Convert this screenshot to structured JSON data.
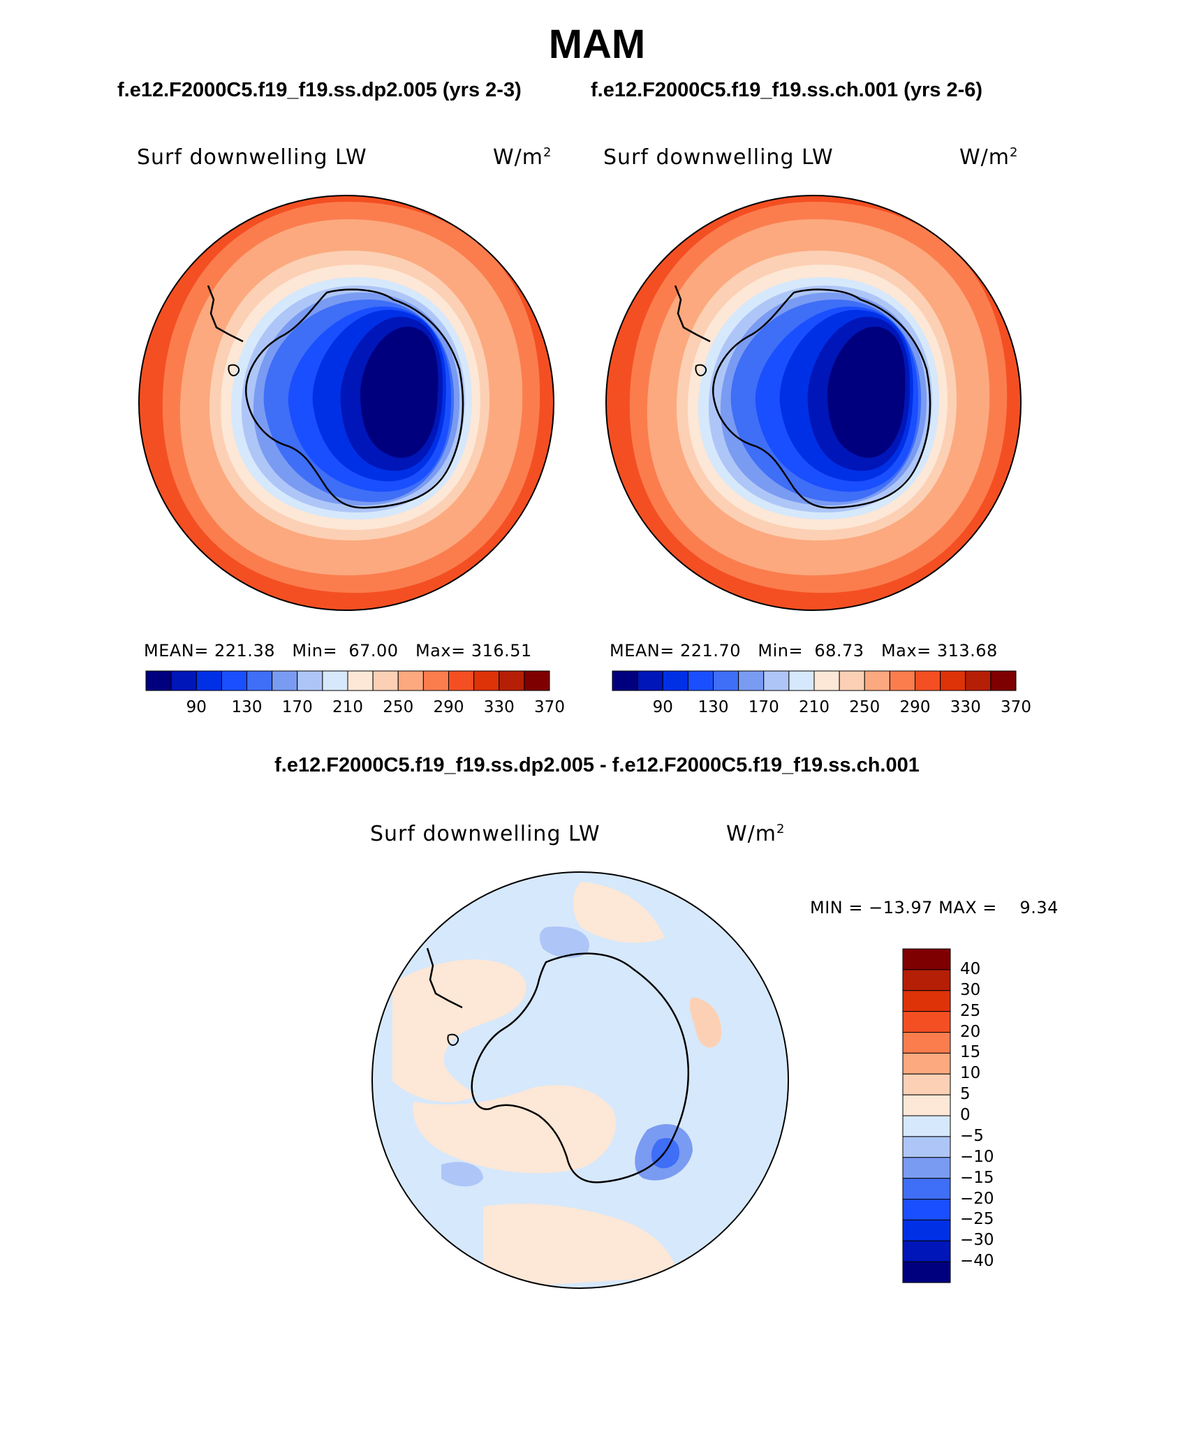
{
  "title": "MAM",
  "panels": [
    {
      "case": "f.e12.F2000C5.f19_f19.ss.dp2.005 (yrs 2-3)",
      "variable": "Surf downwelling LW",
      "units": "W/m",
      "units_sup": "2",
      "mean_label": "MEAN=",
      "mean": "221.38",
      "min_label": "Min=",
      "min": "67.00",
      "max_label": "Max=",
      "max": "316.51"
    },
    {
      "case": "f.e12.F2000C5.f19_f19.ss.ch.001 (yrs 2-6)",
      "variable": "Surf downwelling LW",
      "units": "W/m",
      "units_sup": "2",
      "mean_label": "MEAN=",
      "mean": "221.70",
      "min_label": "Min=",
      "min": "68.73",
      "max_label": "Max=",
      "max": "313.68"
    }
  ],
  "abs_colorbar": {
    "colors": [
      "#00007f",
      "#0016b8",
      "#0030e6",
      "#1a4fff",
      "#3f6ef7",
      "#7a9bf2",
      "#aec6f7",
      "#d6e8fb",
      "#fde7d6",
      "#fcd0b4",
      "#fca97f",
      "#fb7d4e",
      "#f44f22",
      "#de3208",
      "#b51f06",
      "#7f0000"
    ],
    "ticks": [
      "90",
      "130",
      "170",
      "210",
      "250",
      "290",
      "330",
      "370"
    ]
  },
  "difference": {
    "title": "f.e12.F2000C5.f19_f19.ss.dp2.005 - f.e12.F2000C5.f19_f19.ss.ch.001",
    "variable": "Surf downwelling LW",
    "units": "W/m",
    "units_sup": "2",
    "min_label": "MIN =",
    "min": "−13.97",
    "max_label": "MAX =",
    "max": "9.34"
  },
  "diff_colorbar": {
    "colors": [
      "#7f0000",
      "#b51f06",
      "#de3208",
      "#f44f22",
      "#fb7d4e",
      "#fca97f",
      "#fcd0b4",
      "#fde7d6",
      "#d6e8fb",
      "#aec6f7",
      "#7a9bf2",
      "#3f6ef7",
      "#1a4fff",
      "#0030e6",
      "#0016b8",
      "#00007f"
    ],
    "ticks": [
      "40",
      "30",
      "25",
      "20",
      "15",
      "10",
      "5",
      "0",
      "−5",
      "−10",
      "−15",
      "−20",
      "−25",
      "−30",
      "−40"
    ]
  }
}
